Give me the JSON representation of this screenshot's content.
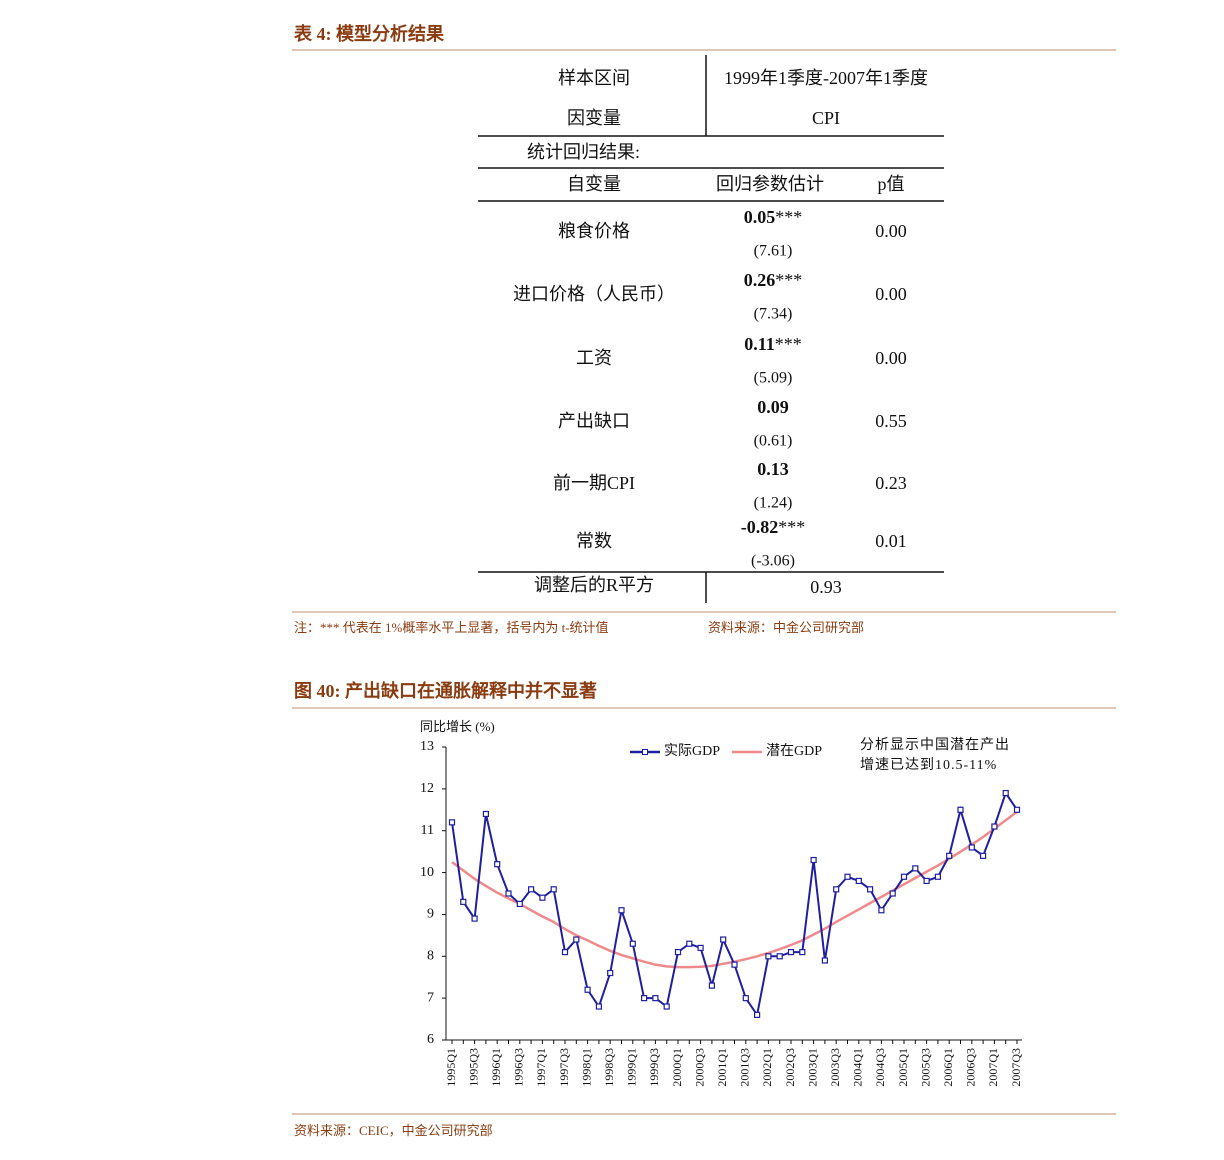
{
  "table_title": "表 4: 模型分析结果",
  "table": {
    "header": [
      [
        "样本区间",
        "1999年1季度-2007年1季度"
      ],
      [
        "因变量",
        "CPI"
      ]
    ],
    "section": "统计回归结果:",
    "columns": [
      "自变量",
      "回归参数估计",
      "p值"
    ],
    "rows": [
      {
        "variable": "粮食价格",
        "coef": "0.05",
        "sig": "***",
        "t": "(7.61)",
        "p": "0.00"
      },
      {
        "variable": "进口价格（人民币）",
        "coef": "0.26",
        "sig": "***",
        "t": "(7.34)",
        "p": "0.00"
      },
      {
        "variable": "工资",
        "coef": "0.11",
        "sig": "***",
        "t": "(5.09)",
        "p": "0.00"
      },
      {
        "variable": "产出缺口",
        "coef": "0.09",
        "t": "(0.61)",
        "p": "0.55"
      },
      {
        "variable": "前一期CPI",
        "coef": "0.13",
        "t": "(1.24)",
        "p": "0.23"
      },
      {
        "variable": "常数",
        "coef": "-0.82",
        "sig": "***",
        "t": "(-3.06)",
        "p": "0.01"
      }
    ],
    "footer": [
      "调整后的R平方",
      "0.93"
    ]
  },
  "table_note": "注：*** 代表在 1%概率水平上显著，括号内为 t-统计值",
  "table_source": "资料来源：中金公司研究部",
  "figure_title": "图 40: 产出缺口在通胀解释中并不显著",
  "chart_data": {
    "type": "line",
    "y_label": "同比增长 (%)",
    "annotation": "分析显示中国潜在产出增速已达到10.5-11%",
    "categories": [
      "1995Q1",
      null,
      "1995Q3",
      null,
      "1996Q1",
      null,
      "1996Q3",
      null,
      "1997Q1",
      null,
      "1997Q3",
      null,
      "1998Q1",
      null,
      "1998Q3",
      null,
      "1999Q1",
      null,
      "1999Q3",
      null,
      "2000Q1",
      null,
      "2000Q3",
      null,
      "2001Q1",
      null,
      "2001Q3",
      null,
      "2002Q1",
      null,
      "2002Q3",
      null,
      "2003Q1",
      null,
      "2003Q3",
      null,
      "2004Q1",
      null,
      "2004Q3",
      null,
      "2005Q1",
      null,
      "2005Q3",
      null,
      "2006Q1",
      null,
      "2006Q3",
      null,
      "2007Q1",
      null,
      "2007Q3"
    ],
    "series": [
      {
        "name": "实际GDP",
        "color": "#1f1fa0",
        "markers": true,
        "values": [
          11.2,
          9.3,
          8.9,
          11.4,
          10.2,
          9.5,
          9.25,
          9.6,
          9.4,
          9.6,
          8.1,
          8.4,
          7.2,
          6.8,
          7.6,
          9.1,
          8.3,
          7.0,
          7.0,
          6.8,
          8.1,
          8.3,
          8.2,
          7.3,
          8.4,
          7.8,
          7.0,
          6.6,
          8.0,
          8.0,
          8.1,
          8.1,
          10.3,
          7.9,
          9.6,
          9.9,
          9.8,
          9.6,
          9.1,
          9.5,
          9.9,
          10.1,
          9.8,
          9.9,
          10.4,
          11.5,
          10.6,
          10.4,
          11.1,
          11.9,
          11.5
        ]
      },
      {
        "name": "潜在GDP",
        "color": "#f08a8a",
        "markers": false,
        "values": [
          10.25,
          10.05,
          9.85,
          9.68,
          9.52,
          9.38,
          9.25,
          9.1,
          8.95,
          8.82,
          8.65,
          8.5,
          8.38,
          8.25,
          8.13,
          8.03,
          7.95,
          7.87,
          7.8,
          7.76,
          7.74,
          7.74,
          7.75,
          7.77,
          7.82,
          7.87,
          7.93,
          8.0,
          8.08,
          8.17,
          8.27,
          8.38,
          8.52,
          8.66,
          8.82,
          8.97,
          9.12,
          9.27,
          9.42,
          9.57,
          9.72,
          9.87,
          10.02,
          10.17,
          10.33,
          10.5,
          10.67,
          10.85,
          11.05,
          11.25,
          11.45
        ]
      }
    ],
    "ylim": [
      6,
      13
    ],
    "yticks": [
      6,
      7,
      8,
      9,
      10,
      11,
      12,
      13
    ]
  },
  "figure_source": "资料来源：CEIC，中金公司研究部"
}
